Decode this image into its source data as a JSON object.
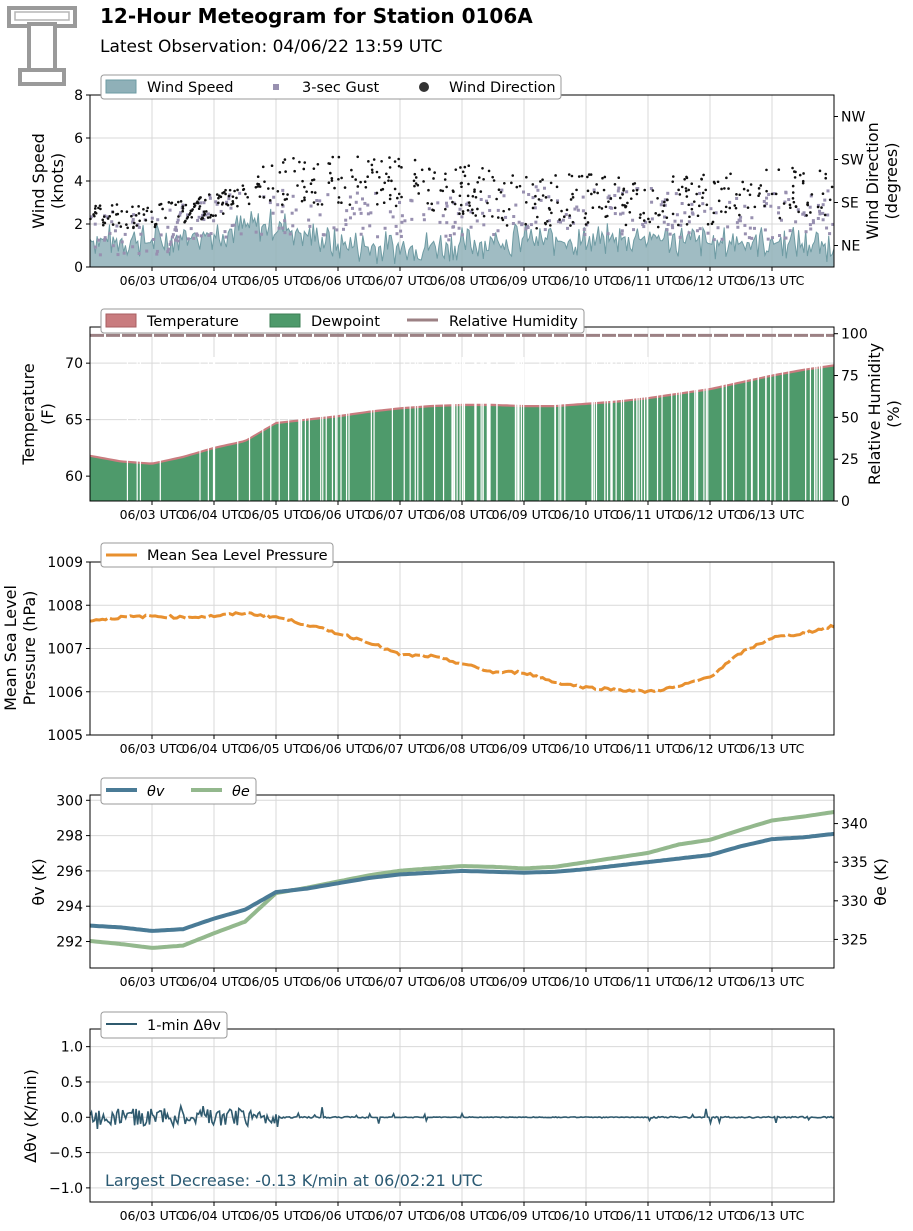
{
  "header": {
    "title": "12-Hour Meteogram for Station 0106A",
    "subtitle": "Latest Observation: 04/06/22 13:59 UTC",
    "logo_text": "T"
  },
  "x_ticks": [
    "06/03 UTC",
    "06/04 UTC",
    "06/05 UTC",
    "06/06 UTC",
    "06/07 UTC",
    "06/08 UTC",
    "06/09 UTC",
    "06/10 UTC",
    "06/11 UTC",
    "06/12 UTC",
    "06/13 UTC"
  ],
  "colors": {
    "wind_fill": "#8fb0b8",
    "wind_line": "#6e9ba3",
    "gust": "#9890b0",
    "direction": "#111111",
    "temperature": "#c97c7f",
    "dewpoint": "#4e9a6b",
    "rh": "#9c8184",
    "pressure": "#e8902f",
    "theta_v": "#4a7b96",
    "theta_e": "#93b88d",
    "dtheta": "#2f5a6e",
    "annotation": "#2b5a73",
    "grid": "#d9d9d9"
  },
  "chart_data": [
    {
      "type": "area",
      "id": "wind",
      "ylabel": [
        "Wind Speed",
        "(knots)"
      ],
      "y2label": [
        "Wind Direction",
        "(degrees)"
      ],
      "ylim": [
        0,
        8
      ],
      "yticks": [
        "0",
        "2",
        "4",
        "6",
        "8"
      ],
      "y2ticks": [
        "NE",
        "SE",
        "SW",
        "NW"
      ],
      "y2tick_degrees": [
        45,
        135,
        225,
        315
      ],
      "y2lim": [
        0,
        360
      ],
      "legend": [
        "Wind Speed",
        "3-sec Gust",
        "Wind Direction"
      ],
      "legend_loc": "top-left",
      "grid": true,
      "x": [
        0,
        1,
        2,
        3,
        4,
        5,
        6,
        7,
        8,
        9,
        10,
        11,
        12
      ],
      "speed": [
        1.3,
        1.2,
        1.6,
        2.0,
        1.0,
        0.9,
        1.1,
        1.3,
        1.2,
        1.4,
        1.1,
        1.2,
        1.0
      ],
      "gust": [
        1.6,
        1.6,
        2.3,
        2.7,
        2.4,
        2.5,
        2.3,
        2.8,
        2.6,
        2.6,
        2.3,
        2.4,
        2.6
      ],
      "direction": [
        110,
        105,
        130,
        175,
        185,
        175,
        160,
        135,
        140,
        135,
        140,
        150,
        165
      ]
    },
    {
      "type": "area",
      "id": "temperature",
      "ylabel": [
        "Temperature",
        "(F)"
      ],
      "y2label": [
        "Relative Humidity",
        "(%)"
      ],
      "ylim": [
        57.8,
        73.2
      ],
      "yticks": [
        "60",
        "65",
        "70"
      ],
      "y2lim": [
        0,
        104
      ],
      "y2ticks": [
        "0",
        "25",
        "50",
        "75",
        "100"
      ],
      "legend": [
        "Temperature",
        "Dewpoint",
        "Relative Humidity"
      ],
      "legend_loc": "top-left",
      "grid": true,
      "x": [
        0,
        0.5,
        1,
        1.5,
        2,
        2.5,
        3,
        3.5,
        4,
        4.5,
        5,
        5.5,
        6,
        6.5,
        7,
        7.5,
        8,
        8.5,
        9,
        9.5,
        10,
        10.5,
        11,
        11.5,
        12
      ],
      "temperature": [
        61.9,
        61.4,
        61.2,
        61.8,
        62.6,
        63.2,
        64.8,
        65.1,
        65.4,
        65.8,
        66.1,
        66.3,
        66.4,
        66.4,
        66.3,
        66.3,
        66.5,
        66.7,
        67.0,
        67.4,
        67.8,
        68.4,
        69.0,
        69.5,
        69.9
      ],
      "dewpoint": [
        61.7,
        61.2,
        61.0,
        61.6,
        62.4,
        63.0,
        64.6,
        64.9,
        65.2,
        65.6,
        65.9,
        66.1,
        66.2,
        66.2,
        66.1,
        66.1,
        66.3,
        66.5,
        66.8,
        67.2,
        67.6,
        68.2,
        68.8,
        69.3,
        69.7
      ],
      "rh": [
        99,
        99,
        99,
        99,
        99,
        99,
        99,
        99,
        99,
        99,
        99,
        99,
        99,
        99,
        99,
        99,
        99,
        99,
        99,
        99,
        99,
        99,
        99,
        99,
        99
      ]
    },
    {
      "type": "line",
      "id": "pressure",
      "ylabel": [
        "Mean Sea Level",
        "Pressure (hPa)"
      ],
      "ylim": [
        1005,
        1009
      ],
      "yticks": [
        "1005",
        "1006",
        "1007",
        "1008",
        "1009"
      ],
      "legend": [
        "Mean Sea Level Pressure"
      ],
      "legend_loc": "top-left",
      "grid": true,
      "x": [
        0,
        0.5,
        1,
        1.5,
        2,
        2.5,
        3,
        3.5,
        4,
        4.5,
        5,
        5.5,
        6,
        6.5,
        7,
        7.5,
        8,
        8.5,
        9,
        9.5,
        10,
        10.5,
        11,
        11.5,
        12
      ],
      "values": [
        1007.65,
        1007.72,
        1007.75,
        1007.72,
        1007.75,
        1007.82,
        1007.73,
        1007.55,
        1007.35,
        1007.15,
        1006.85,
        1006.82,
        1006.65,
        1006.45,
        1006.45,
        1006.22,
        1006.1,
        1006.05,
        1006.0,
        1006.12,
        1006.35,
        1006.9,
        1007.25,
        1007.35,
        1007.52
      ]
    },
    {
      "type": "line",
      "id": "theta",
      "ylabel": [
        "θv (K)"
      ],
      "y2label": [
        "θe (K)"
      ],
      "ylim": [
        290.5,
        300.3
      ],
      "yticks": [
        "292",
        "294",
        "296",
        "298",
        "300"
      ],
      "y2lim": [
        321.3,
        343.7
      ],
      "y2ticks": [
        "325",
        "330",
        "335",
        "340"
      ],
      "legend": [
        "θv",
        "θe"
      ],
      "legend_loc": "top-left",
      "grid": true,
      "x": [
        0,
        0.5,
        1,
        1.5,
        2,
        2.5,
        3,
        3.5,
        4,
        4.5,
        5,
        5.5,
        6,
        6.5,
        7,
        7.5,
        8,
        8.5,
        9,
        9.5,
        10,
        10.5,
        11,
        11.5,
        12
      ],
      "theta_v": [
        292.9,
        292.8,
        292.6,
        292.7,
        293.3,
        293.8,
        294.8,
        295.0,
        295.3,
        295.6,
        295.8,
        295.9,
        296.0,
        295.95,
        295.9,
        295.95,
        296.1,
        296.3,
        296.5,
        296.7,
        296.9,
        297.4,
        297.8,
        297.9,
        298.1
      ],
      "theta_e": [
        324.8,
        324.4,
        323.9,
        324.2,
        325.8,
        327.3,
        331.0,
        331.7,
        332.5,
        333.3,
        333.9,
        334.2,
        334.5,
        334.4,
        334.2,
        334.4,
        335.0,
        335.6,
        336.2,
        337.3,
        337.9,
        339.2,
        340.4,
        340.9,
        341.5
      ]
    },
    {
      "type": "line",
      "id": "dtheta",
      "ylabel": [
        "Δθv (K/min)"
      ],
      "ylim": [
        -1.2,
        1.25
      ],
      "yticks": [
        "−1.0",
        "−0.5",
        "0.0",
        "0.5",
        "1.0"
      ],
      "legend": [
        "1-min Δθv"
      ],
      "legend_loc": "top-left",
      "grid": true,
      "x": [
        0,
        0.5,
        1,
        1.5,
        2,
        2.5,
        3,
        3.5,
        4,
        4.5,
        5,
        5.5,
        6,
        6.5,
        7,
        7.5,
        8,
        8.5,
        9,
        9.5,
        10,
        10.5,
        11,
        11.5,
        12
      ],
      "values": [
        0.05,
        -0.08,
        0.08,
        -0.1,
        0.1,
        0.15,
        0.05,
        0.0,
        0.06,
        0.0,
        0.0,
        0.0,
        0.0,
        0.0,
        0.0,
        0.0,
        0.0,
        0.0,
        0.0,
        0.06,
        -0.08,
        0.08,
        0.1,
        0.05,
        0.0
      ],
      "annotation": "Largest Decrease: -0.13 K/min at 06/02:21 UTC"
    }
  ]
}
